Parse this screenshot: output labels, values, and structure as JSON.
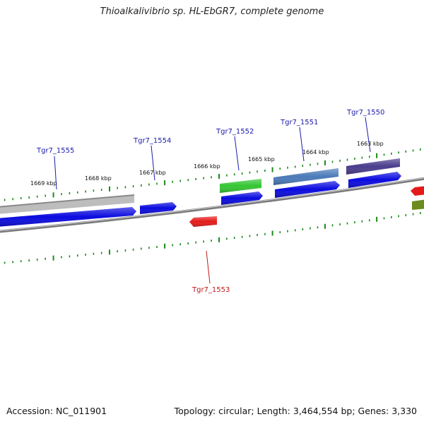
{
  "title": "Thioalkalivibrio sp. HL-EbGR7, complete genome",
  "footer": {
    "accession": "Accession: NC_011901",
    "topology": "Topology: circular; Length: 3,464,554 bp; Genes: 3,330"
  },
  "kbp_labels": [
    "1669 kbp",
    "1668 kbp",
    "1667 kbp",
    "1666 kbp",
    "1665 kbp",
    "1664 kbp",
    "1663 kbp"
  ],
  "gene_labels": {
    "tgr7_1555": "Tgr7_1555",
    "tgr7_1554": "Tgr7_1554",
    "tgr7_1553": "Tgr7_1553",
    "tgr7_1552": "Tgr7_1552",
    "tgr7_1551": "Tgr7_1551",
    "tgr7_1550": "Tgr7_1550"
  },
  "colors": {
    "backbone": "#7a7a7a",
    "cds_forward": "#0a0adf",
    "cds_reverse": "#e41a1a",
    "gene_grey": "#bdbdbd",
    "gene_green": "#33c533",
    "gene_steelblue": "#4a7ab8",
    "gene_purple": "#4a3c8c",
    "gene_olive": "#6b8c1e",
    "tick_green": "#1c8a1c",
    "label_blue": "#1a1aaa",
    "label_red": "#c01818"
  }
}
